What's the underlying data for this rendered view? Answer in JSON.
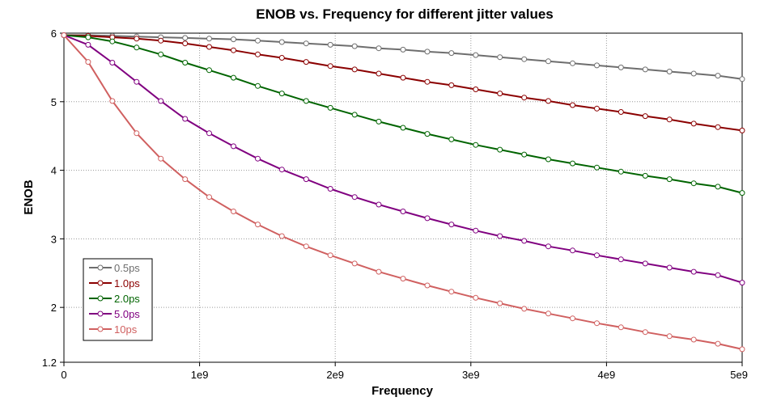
{
  "chart_data": {
    "type": "line",
    "title": "ENOB vs. Frequency for different jitter values",
    "xlabel": "Frequency",
    "ylabel": "ENOB",
    "xlim": [
      0,
      5000000000
    ],
    "ylim": [
      1.2,
      6
    ],
    "x_ticks": [
      {
        "value": 0,
        "label": "0"
      },
      {
        "value": 1000000000,
        "label": "1e9"
      },
      {
        "value": 2000000000,
        "label": "2e9"
      },
      {
        "value": 3000000000,
        "label": "3e9"
      },
      {
        "value": 4000000000,
        "label": "4e9"
      },
      {
        "value": 5000000000,
        "label": "5e9"
      }
    ],
    "y_ticks": [
      {
        "value": 1.2,
        "label": "1.2"
      },
      {
        "value": 2,
        "label": "2"
      },
      {
        "value": 3,
        "label": "3"
      },
      {
        "value": 4,
        "label": "4"
      },
      {
        "value": 5,
        "label": "5"
      },
      {
        "value": 6,
        "label": "6"
      }
    ],
    "grid": true,
    "legend_position": "bottom-left",
    "series": [
      {
        "name": "0.5ps",
        "color": "#6e6e6e",
        "x": [
          0,
          178600000,
          357100000,
          535700000,
          714300000,
          892900000,
          1071000000,
          1250000000,
          1429000000,
          1607000000,
          1786000000,
          1964000000,
          2143000000,
          2321000000,
          2500000000,
          2679000000,
          2857000000,
          3036000000,
          3214000000,
          3393000000,
          3571000000,
          3750000000,
          3929000000,
          4107000000,
          4286000000,
          4464000000,
          4643000000,
          4821000000,
          5000000000
        ],
        "values": [
          5.97,
          5.97,
          5.96,
          5.95,
          5.94,
          5.93,
          5.92,
          5.91,
          5.89,
          5.87,
          5.85,
          5.83,
          5.81,
          5.78,
          5.76,
          5.73,
          5.71,
          5.68,
          5.65,
          5.62,
          5.59,
          5.56,
          5.53,
          5.5,
          5.47,
          5.44,
          5.41,
          5.38,
          5.33
        ]
      },
      {
        "name": "1.0ps",
        "color": "#8b0000",
        "x": [
          0,
          178600000,
          357100000,
          535700000,
          714300000,
          892900000,
          1071000000,
          1250000000,
          1429000000,
          1607000000,
          1786000000,
          1964000000,
          2143000000,
          2321000000,
          2500000000,
          2679000000,
          2857000000,
          3036000000,
          3214000000,
          3393000000,
          3571000000,
          3750000000,
          3929000000,
          4107000000,
          4286000000,
          4464000000,
          4643000000,
          4821000000,
          5000000000
        ],
        "values": [
          5.97,
          5.96,
          5.94,
          5.92,
          5.89,
          5.85,
          5.8,
          5.75,
          5.69,
          5.64,
          5.58,
          5.52,
          5.47,
          5.41,
          5.35,
          5.29,
          5.24,
          5.18,
          5.12,
          5.06,
          5.01,
          4.95,
          4.9,
          4.85,
          4.79,
          4.74,
          4.68,
          4.63,
          4.58
        ]
      },
      {
        "name": "2.0ps",
        "color": "#006400",
        "x": [
          0,
          178600000,
          357100000,
          535700000,
          714300000,
          892900000,
          1071000000,
          1250000000,
          1429000000,
          1607000000,
          1786000000,
          1964000000,
          2143000000,
          2321000000,
          2500000000,
          2679000000,
          2857000000,
          3036000000,
          3214000000,
          3393000000,
          3571000000,
          3750000000,
          3929000000,
          4107000000,
          4286000000,
          4464000000,
          4643000000,
          4821000000,
          5000000000
        ],
        "values": [
          5.97,
          5.94,
          5.88,
          5.79,
          5.69,
          5.57,
          5.46,
          5.35,
          5.23,
          5.12,
          5.01,
          4.91,
          4.81,
          4.71,
          4.62,
          4.53,
          4.45,
          4.37,
          4.3,
          4.23,
          4.16,
          4.1,
          4.04,
          3.98,
          3.92,
          3.87,
          3.81,
          3.76,
          3.67
        ]
      },
      {
        "name": "5.0ps",
        "color": "#800080",
        "x": [
          0,
          178600000,
          357100000,
          535700000,
          714300000,
          892900000,
          1071000000,
          1250000000,
          1429000000,
          1607000000,
          1786000000,
          1964000000,
          2143000000,
          2321000000,
          2500000000,
          2679000000,
          2857000000,
          3036000000,
          3214000000,
          3393000000,
          3571000000,
          3750000000,
          3929000000,
          4107000000,
          4286000000,
          4464000000,
          4643000000,
          4821000000,
          5000000000
        ],
        "values": [
          5.97,
          5.83,
          5.57,
          5.29,
          5.01,
          4.75,
          4.54,
          4.35,
          4.17,
          4.01,
          3.87,
          3.73,
          3.61,
          3.5,
          3.4,
          3.3,
          3.21,
          3.12,
          3.04,
          2.97,
          2.89,
          2.83,
          2.76,
          2.7,
          2.64,
          2.58,
          2.52,
          2.47,
          2.36
        ]
      },
      {
        "name": "10ps",
        "color": "#d06060",
        "x": [
          0,
          178600000,
          357100000,
          535700000,
          714300000,
          892900000,
          1071000000,
          1250000000,
          1429000000,
          1607000000,
          1786000000,
          1964000000,
          2143000000,
          2321000000,
          2500000000,
          2679000000,
          2857000000,
          3036000000,
          3214000000,
          3393000000,
          3571000000,
          3750000000,
          3929000000,
          4107000000,
          4286000000,
          4464000000,
          4643000000,
          4821000000,
          5000000000
        ],
        "values": [
          5.97,
          5.58,
          5.01,
          4.54,
          4.17,
          3.87,
          3.61,
          3.4,
          3.21,
          3.04,
          2.89,
          2.76,
          2.64,
          2.52,
          2.42,
          2.32,
          2.23,
          2.14,
          2.06,
          1.98,
          1.91,
          1.84,
          1.77,
          1.71,
          1.64,
          1.58,
          1.53,
          1.47,
          1.39
        ]
      }
    ]
  }
}
